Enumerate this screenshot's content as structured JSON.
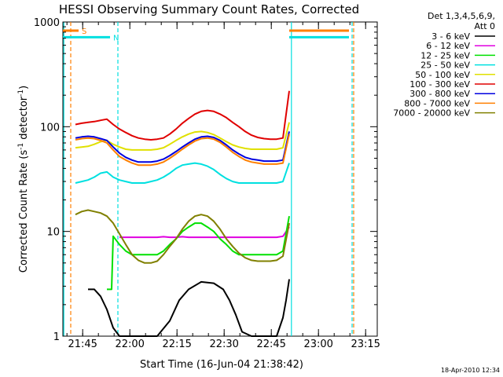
{
  "chart_data": {
    "type": "line",
    "title": "HESSI Observing Summary Count Rates, Corrected",
    "xlabel": "Start Time (16-Jun-04 21:38:42)",
    "ylabel": "Corrected Count Rate (s",
    "ylabel_sup1": "-1",
    "ylabel_mid": " detector",
    "ylabel_sup2": "-1",
    "ylabel_end": ")",
    "yscale": "log",
    "ylim": [
      1,
      1000
    ],
    "xlim_minutes_after_21_38_42": [
      0,
      100
    ],
    "x_ticks": [
      "21:45",
      "22:00",
      "22:15",
      "22:30",
      "22:45",
      "23:00",
      "23:15"
    ],
    "y_ticks": [
      "1",
      "10",
      "100",
      "1000"
    ],
    "legend_header": [
      "Det 1,3,4,5,6,9,",
      "Att 0"
    ],
    "series": [
      {
        "name": "3 - 6 keV",
        "color": "#000000",
        "points": [
          [
            8,
            2.8
          ],
          [
            10,
            2.8
          ],
          [
            12,
            2.4
          ],
          [
            14,
            1.8
          ],
          [
            16,
            1.2
          ],
          [
            18,
            1
          ],
          [
            22,
            1
          ],
          [
            26,
            1
          ],
          [
            30,
            1
          ],
          [
            34,
            1.4
          ],
          [
            37,
            2.2
          ],
          [
            40,
            2.8
          ],
          [
            44,
            3.3
          ],
          [
            48,
            3.2
          ],
          [
            51,
            2.8
          ],
          [
            53,
            2.2
          ],
          [
            55,
            1.6
          ],
          [
            57,
            1.1
          ],
          [
            60,
            1
          ],
          [
            65,
            1
          ],
          [
            68,
            1
          ],
          [
            70,
            1.5
          ],
          [
            71,
            2.2
          ],
          [
            72,
            3.5
          ]
        ]
      },
      {
        "name": "6 - 12 keV",
        "color": "#e000e0",
        "points": [
          [
            18,
            8.8
          ],
          [
            20,
            8.8
          ],
          [
            22,
            8.8
          ],
          [
            24,
            8.8
          ],
          [
            26,
            8.8
          ],
          [
            28,
            8.8
          ],
          [
            30,
            8.8
          ],
          [
            32,
            8.9
          ],
          [
            34,
            8.8
          ],
          [
            36,
            8.8
          ],
          [
            38,
            8.9
          ],
          [
            40,
            8.8
          ],
          [
            42,
            8.8
          ],
          [
            44,
            8.8
          ],
          [
            46,
            8.8
          ],
          [
            48,
            8.8
          ],
          [
            50,
            8.8
          ],
          [
            52,
            8.8
          ],
          [
            54,
            8.8
          ],
          [
            56,
            8.8
          ],
          [
            58,
            8.8
          ],
          [
            60,
            8.8
          ],
          [
            62,
            8.8
          ],
          [
            64,
            8.8
          ],
          [
            66,
            8.8
          ],
          [
            68,
            8.8
          ],
          [
            70,
            9
          ],
          [
            72,
            11
          ]
        ]
      },
      {
        "name": "12 - 25 keV",
        "color": "#00e000",
        "points": [
          [
            14,
            2.8
          ],
          [
            15.5,
            2.8
          ],
          [
            16,
            9
          ],
          [
            18,
            7.5
          ],
          [
            20,
            6.5
          ],
          [
            22,
            6
          ],
          [
            24,
            6
          ],
          [
            26,
            6
          ],
          [
            28,
            6
          ],
          [
            30,
            6
          ],
          [
            32,
            6.5
          ],
          [
            34,
            7.5
          ],
          [
            36,
            8.5
          ],
          [
            38,
            10
          ],
          [
            40,
            11
          ],
          [
            42,
            12
          ],
          [
            44,
            12
          ],
          [
            46,
            11
          ],
          [
            48,
            10
          ],
          [
            50,
            8.5
          ],
          [
            52,
            7.5
          ],
          [
            54,
            6.5
          ],
          [
            56,
            6
          ],
          [
            58,
            6
          ],
          [
            60,
            6
          ],
          [
            62,
            6
          ],
          [
            64,
            6
          ],
          [
            66,
            6
          ],
          [
            68,
            6
          ],
          [
            70,
            6.5
          ],
          [
            72,
            14
          ]
        ]
      },
      {
        "name": "25 - 50 keV",
        "color": "#00e0e0",
        "points": [
          [
            4,
            29
          ],
          [
            6,
            30
          ],
          [
            8,
            31
          ],
          [
            10,
            33
          ],
          [
            12,
            36
          ],
          [
            14,
            37
          ],
          [
            16,
            33
          ],
          [
            18,
            31
          ],
          [
            20,
            30
          ],
          [
            22,
            29
          ],
          [
            24,
            29
          ],
          [
            26,
            29
          ],
          [
            28,
            30
          ],
          [
            30,
            31
          ],
          [
            32,
            33
          ],
          [
            34,
            36
          ],
          [
            36,
            40
          ],
          [
            38,
            43
          ],
          [
            40,
            44
          ],
          [
            42,
            45
          ],
          [
            44,
            44
          ],
          [
            46,
            42
          ],
          [
            48,
            39
          ],
          [
            50,
            35
          ],
          [
            52,
            32
          ],
          [
            54,
            30
          ],
          [
            56,
            29
          ],
          [
            58,
            29
          ],
          [
            60,
            29
          ],
          [
            62,
            29
          ],
          [
            64,
            29
          ],
          [
            66,
            29
          ],
          [
            68,
            29
          ],
          [
            70,
            30
          ],
          [
            72,
            45
          ]
        ]
      },
      {
        "name": "50 - 100 keV",
        "color": "#e0e000",
        "points": [
          [
            4,
            63
          ],
          [
            6,
            64
          ],
          [
            8,
            65
          ],
          [
            10,
            68
          ],
          [
            12,
            72
          ],
          [
            14,
            74
          ],
          [
            16,
            68
          ],
          [
            18,
            64
          ],
          [
            20,
            61
          ],
          [
            22,
            60
          ],
          [
            24,
            60
          ],
          [
            26,
            60
          ],
          [
            28,
            60
          ],
          [
            30,
            61
          ],
          [
            32,
            63
          ],
          [
            34,
            68
          ],
          [
            36,
            74
          ],
          [
            38,
            80
          ],
          [
            40,
            85
          ],
          [
            42,
            89
          ],
          [
            44,
            90
          ],
          [
            46,
            88
          ],
          [
            48,
            84
          ],
          [
            50,
            78
          ],
          [
            52,
            72
          ],
          [
            54,
            67
          ],
          [
            56,
            64
          ],
          [
            58,
            62
          ],
          [
            60,
            61
          ],
          [
            62,
            61
          ],
          [
            64,
            61
          ],
          [
            66,
            61
          ],
          [
            68,
            61
          ],
          [
            70,
            63
          ],
          [
            72,
            110
          ]
        ]
      },
      {
        "name": "100 - 300 keV",
        "color": "#e00000",
        "points": [
          [
            4,
            105
          ],
          [
            6,
            108
          ],
          [
            8,
            110
          ],
          [
            10,
            112
          ],
          [
            12,
            115
          ],
          [
            14,
            118
          ],
          [
            16,
            105
          ],
          [
            18,
            95
          ],
          [
            20,
            88
          ],
          [
            22,
            82
          ],
          [
            24,
            78
          ],
          [
            26,
            76
          ],
          [
            28,
            75
          ],
          [
            30,
            76
          ],
          [
            32,
            78
          ],
          [
            34,
            85
          ],
          [
            36,
            95
          ],
          [
            38,
            108
          ],
          [
            40,
            120
          ],
          [
            42,
            132
          ],
          [
            44,
            140
          ],
          [
            46,
            143
          ],
          [
            48,
            140
          ],
          [
            50,
            132
          ],
          [
            52,
            122
          ],
          [
            54,
            110
          ],
          [
            56,
            100
          ],
          [
            58,
            90
          ],
          [
            60,
            83
          ],
          [
            62,
            79
          ],
          [
            64,
            77
          ],
          [
            66,
            76
          ],
          [
            68,
            76
          ],
          [
            70,
            78
          ],
          [
            72,
            220
          ]
        ]
      },
      {
        "name": "300 - 800 keV",
        "color": "#0000e0",
        "points": [
          [
            4,
            78
          ],
          [
            6,
            80
          ],
          [
            8,
            81
          ],
          [
            10,
            80
          ],
          [
            12,
            77
          ],
          [
            14,
            74
          ],
          [
            16,
            64
          ],
          [
            18,
            56
          ],
          [
            20,
            51
          ],
          [
            22,
            48
          ],
          [
            24,
            46
          ],
          [
            26,
            46
          ],
          [
            28,
            46
          ],
          [
            30,
            47
          ],
          [
            32,
            49
          ],
          [
            34,
            53
          ],
          [
            36,
            58
          ],
          [
            38,
            64
          ],
          [
            40,
            70
          ],
          [
            42,
            76
          ],
          [
            44,
            80
          ],
          [
            46,
            81
          ],
          [
            48,
            79
          ],
          [
            50,
            74
          ],
          [
            52,
            67
          ],
          [
            54,
            60
          ],
          [
            56,
            55
          ],
          [
            58,
            51
          ],
          [
            60,
            49
          ],
          [
            62,
            48
          ],
          [
            64,
            47
          ],
          [
            66,
            47
          ],
          [
            68,
            47
          ],
          [
            70,
            48
          ],
          [
            72,
            90
          ]
        ]
      },
      {
        "name": "800 - 7000 keV",
        "color": "#ff7f00",
        "points": [
          [
            4,
            75
          ],
          [
            6,
            77
          ],
          [
            8,
            78
          ],
          [
            10,
            77
          ],
          [
            12,
            74
          ],
          [
            14,
            70
          ],
          [
            16,
            60
          ],
          [
            18,
            52
          ],
          [
            20,
            48
          ],
          [
            22,
            45
          ],
          [
            24,
            43
          ],
          [
            26,
            43
          ],
          [
            28,
            43
          ],
          [
            30,
            44
          ],
          [
            32,
            46
          ],
          [
            34,
            50
          ],
          [
            36,
            55
          ],
          [
            38,
            61
          ],
          [
            40,
            67
          ],
          [
            42,
            73
          ],
          [
            44,
            77
          ],
          [
            46,
            78
          ],
          [
            48,
            76
          ],
          [
            50,
            71
          ],
          [
            52,
            64
          ],
          [
            54,
            57
          ],
          [
            56,
            52
          ],
          [
            58,
            48
          ],
          [
            60,
            46
          ],
          [
            62,
            45
          ],
          [
            64,
            44
          ],
          [
            66,
            44
          ],
          [
            68,
            44
          ],
          [
            70,
            45
          ],
          [
            72,
            85
          ]
        ]
      },
      {
        "name": "7000 - 20000 keV",
        "color": "#808000",
        "points": [
          [
            4,
            14.5
          ],
          [
            6,
            15.5
          ],
          [
            8,
            16
          ],
          [
            10,
            15.5
          ],
          [
            12,
            15
          ],
          [
            14,
            14
          ],
          [
            16,
            12
          ],
          [
            18,
            9.5
          ],
          [
            20,
            7.5
          ],
          [
            22,
            6
          ],
          [
            24,
            5.3
          ],
          [
            26,
            5
          ],
          [
            28,
            5
          ],
          [
            30,
            5.2
          ],
          [
            32,
            6
          ],
          [
            34,
            7.2
          ],
          [
            36,
            8.5
          ],
          [
            38,
            10.5
          ],
          [
            40,
            12.5
          ],
          [
            42,
            14
          ],
          [
            44,
            14.5
          ],
          [
            46,
            14
          ],
          [
            48,
            12.5
          ],
          [
            50,
            10.5
          ],
          [
            52,
            8.5
          ],
          [
            54,
            7.2
          ],
          [
            56,
            6.2
          ],
          [
            58,
            5.6
          ],
          [
            60,
            5.3
          ],
          [
            62,
            5.2
          ],
          [
            64,
            5.2
          ],
          [
            66,
            5.2
          ],
          [
            68,
            5.3
          ],
          [
            70,
            5.8
          ],
          [
            72,
            12
          ]
        ]
      }
    ],
    "flags": [
      {
        "label": "S",
        "color": "#ff7f00",
        "x_start": 0,
        "x_end": 5,
        "level": 0.9
      },
      {
        "label": "N",
        "color": "#00e0e0",
        "x_start": 0,
        "x_end": 15,
        "level": 0.86
      },
      {
        "label": "",
        "color": "#ff7f00",
        "x_start": 72,
        "x_end": 91,
        "level": 0.9
      },
      {
        "label": "",
        "color": "#00e0e0",
        "x_start": 72,
        "x_end": 91,
        "level": 0.86
      }
    ],
    "vlines": [
      {
        "x": 2.5,
        "color": "#ff7f00",
        "dash": true
      },
      {
        "x": 17.5,
        "color": "#00e0e0",
        "dash": true
      },
      {
        "x": 0.3,
        "color": "#00e0e0",
        "dash": false
      },
      {
        "x": 72.7,
        "color": "#00e0e0",
        "dash": false
      },
      {
        "x": 92,
        "color": "#00e0e0",
        "dash": true
      },
      {
        "x": 92.5,
        "color": "#ff7f00",
        "dash": true
      }
    ],
    "grid": false,
    "legend_position": "right"
  },
  "timestamp": "18-Apr-2010 12:34"
}
